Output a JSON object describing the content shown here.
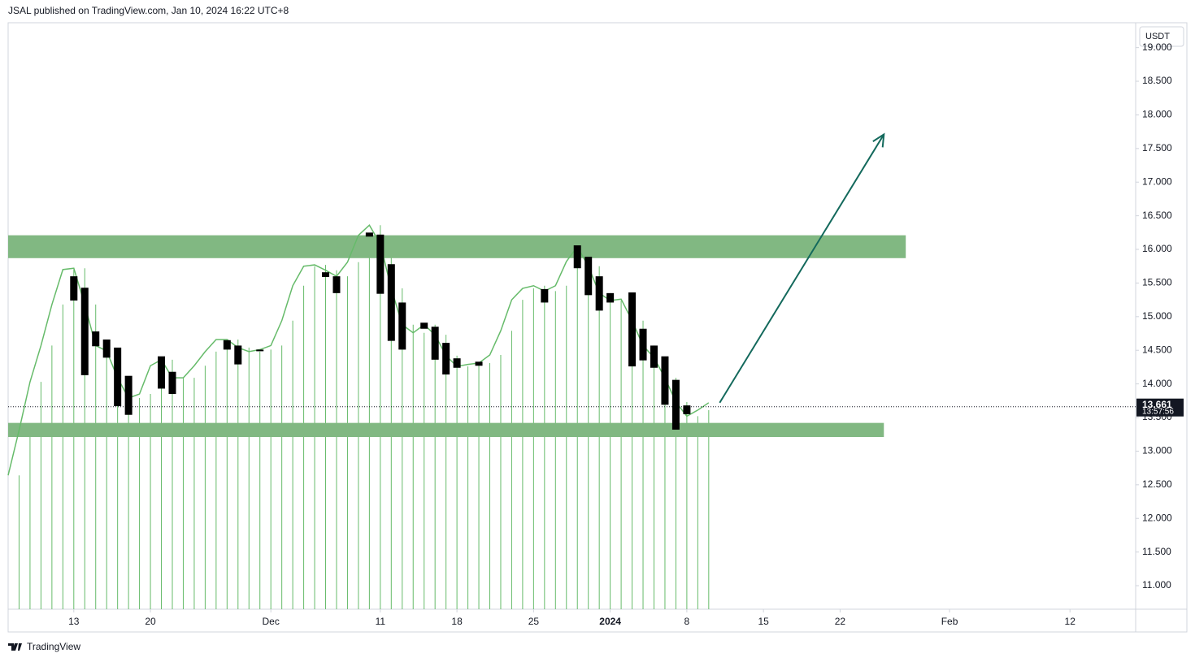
{
  "chart_data": {
    "type": "candlestick",
    "header": "JSAL published on TradingView.com, Jan 10, 2024 16:22 UTC+8",
    "brand": "TradingView",
    "currency": "USDT",
    "x": [
      "2023-11-13",
      "2023-11-14",
      "2023-11-15",
      "2023-11-16",
      "2023-11-17",
      "2023-11-18",
      "2023-11-21",
      "2023-11-22",
      "2023-11-27",
      "2023-11-28",
      "2023-11-30",
      "2023-12-06",
      "2023-12-07",
      "2023-12-10",
      "2023-12-11",
      "2023-12-12",
      "2023-12-13",
      "2023-12-15",
      "2023-12-16",
      "2023-12-17",
      "2023-12-18",
      "2023-12-20",
      "2023-12-26",
      "2023-12-29",
      "2023-12-30",
      "2023-12-31",
      "2024-01-01",
      "2024-01-03",
      "2024-01-04",
      "2024-01-05",
      "2024-01-06",
      "2024-01-07",
      "2024-01-08"
    ],
    "open": [
      15.6,
      15.43,
      14.78,
      14.66,
      14.54,
      14.12,
      14.41,
      14.18,
      14.65,
      14.57,
      14.51,
      15.66,
      15.6,
      16.25,
      16.22,
      15.78,
      15.21,
      14.91,
      14.85,
      14.61,
      14.38,
      14.33,
      15.41,
      16.06,
      15.89,
      15.6,
      15.35,
      15.36,
      14.82,
      14.57,
      14.41,
      14.06,
      13.68
    ],
    "close": [
      15.24,
      14.13,
      14.56,
      14.39,
      13.67,
      13.54,
      13.93,
      13.85,
      14.51,
      14.29,
      14.49,
      15.59,
      15.35,
      16.19,
      15.34,
      14.64,
      14.51,
      14.82,
      14.36,
      14.14,
      14.24,
      14.27,
      15.21,
      15.72,
      15.32,
      15.09,
      15.21,
      14.26,
      14.35,
      14.24,
      13.69,
      13.32,
      13.55
    ],
    "color": "#000000",
    "indicator": {
      "color": "#66bb6a",
      "x": [
        "2023-11-07",
        "2023-11-08",
        "2023-11-09",
        "2023-11-10",
        "2023-11-11",
        "2023-11-12",
        "2023-11-13",
        "2023-11-14",
        "2023-11-15",
        "2023-11-16",
        "2023-11-17",
        "2023-11-18",
        "2023-11-19",
        "2023-11-20",
        "2023-11-21",
        "2023-11-22",
        "2023-11-23",
        "2023-11-24",
        "2023-11-25",
        "2023-11-26",
        "2023-11-27",
        "2023-11-28",
        "2023-11-29",
        "2023-11-30",
        "2023-12-01",
        "2023-12-02",
        "2023-12-03",
        "2023-12-04",
        "2023-12-05",
        "2023-12-06",
        "2023-12-07",
        "2023-12-08",
        "2023-12-09",
        "2023-12-10",
        "2023-12-11",
        "2023-12-12",
        "2023-12-13",
        "2023-12-14",
        "2023-12-15",
        "2023-12-16",
        "2023-12-17",
        "2023-12-18",
        "2023-12-19",
        "2023-12-20",
        "2023-12-21",
        "2023-12-22",
        "2023-12-23",
        "2023-12-24",
        "2023-12-25",
        "2023-12-26",
        "2023-12-27",
        "2023-12-28",
        "2023-12-29",
        "2023-12-30",
        "2023-12-31",
        "2024-01-01",
        "2024-01-02",
        "2024-01-03",
        "2024-01-04",
        "2024-01-05",
        "2024-01-06",
        "2024-01-07",
        "2024-01-08",
        "2024-01-09",
        "2024-01-10"
      ],
      "line": [
        12.64,
        13.31,
        14.03,
        14.57,
        15.18,
        15.7,
        15.72,
        15.18,
        14.57,
        14.49,
        14.09,
        13.79,
        13.85,
        14.27,
        14.36,
        14.09,
        14.09,
        14.27,
        14.48,
        14.66,
        14.66,
        14.54,
        14.48,
        14.51,
        14.57,
        14.94,
        15.46,
        15.75,
        15.77,
        15.69,
        15.6,
        15.81,
        16.21,
        16.36,
        16.08,
        15.42,
        14.88,
        14.76,
        14.88,
        14.73,
        14.42,
        14.26,
        14.29,
        14.31,
        14.43,
        14.79,
        15.25,
        15.42,
        15.46,
        15.38,
        15.46,
        15.82,
        16.04,
        15.75,
        15.35,
        15.24,
        15.26,
        14.94,
        14.57,
        14.39,
        14.09,
        13.73,
        13.52,
        13.61,
        13.72
      ],
      "histogram": [
        null,
        12.64,
        13.31,
        14.03,
        14.57,
        15.18,
        15.7,
        15.72,
        15.18,
        14.57,
        14.49,
        14.09,
        13.79,
        13.85,
        14.27,
        14.36,
        14.09,
        14.09,
        14.27,
        14.48,
        14.66,
        14.66,
        14.54,
        14.48,
        14.51,
        14.57,
        14.94,
        15.46,
        15.75,
        15.77,
        15.69,
        15.6,
        15.81,
        16.21,
        16.36,
        16.08,
        15.42,
        14.88,
        14.76,
        14.88,
        14.73,
        14.42,
        14.26,
        14.29,
        14.31,
        14.43,
        14.79,
        15.25,
        15.42,
        15.46,
        15.38,
        15.46,
        15.82,
        16.04,
        15.75,
        15.35,
        15.24,
        15.26,
        14.94,
        14.57,
        14.39,
        14.09,
        13.73,
        13.52,
        13.61
      ]
    },
    "zones": [
      {
        "from": "2023-11-07",
        "to": "2024-01-28",
        "low": 15.87,
        "high": 16.21,
        "color": "#81b882"
      },
      {
        "from": "2023-11-07",
        "to": "2024-01-26",
        "low": 13.21,
        "high": 13.42,
        "color": "#81b882"
      }
    ],
    "arrow": {
      "x": [
        "2024-01-11",
        "2024-01-26"
      ],
      "y": [
        13.72,
        17.71
      ],
      "color": "#13695c"
    },
    "last_price": 13.661,
    "countdown": "13:57:56",
    "xlim": [
      "2023-11-07",
      "2024-02-18"
    ],
    "xticks": [
      {
        "value": "2023-11-13",
        "label": "13"
      },
      {
        "value": "2023-11-20",
        "label": "20"
      },
      {
        "value": "2023-12-01",
        "label": "Dec"
      },
      {
        "value": "2023-12-11",
        "label": "11"
      },
      {
        "value": "2023-12-18",
        "label": "18"
      },
      {
        "value": "2023-12-25",
        "label": "25"
      },
      {
        "value": "2024-01-01",
        "label": "2024"
      },
      {
        "value": "2024-01-08",
        "label": "8"
      },
      {
        "value": "2024-01-15",
        "label": "15"
      },
      {
        "value": "2024-01-22",
        "label": "22"
      },
      {
        "value": "2024-02-01",
        "label": "Feb"
      },
      {
        "value": "2024-02-12",
        "label": "12"
      }
    ],
    "ylim": [
      10.65,
      19.37
    ],
    "yticks": [
      {
        "value": 11,
        "label": "11.000"
      },
      {
        "value": 11.5,
        "label": "11.500"
      },
      {
        "value": 12,
        "label": "12.000"
      },
      {
        "value": 12.5,
        "label": "12.500"
      },
      {
        "value": 13,
        "label": "13.000"
      },
      {
        "value": 13.5,
        "label": "13.500"
      },
      {
        "value": 14,
        "label": "14.000"
      },
      {
        "value": 14.5,
        "label": "14.500"
      },
      {
        "value": 15,
        "label": "15.000"
      },
      {
        "value": 15.5,
        "label": "15.500"
      },
      {
        "value": 16,
        "label": "16.000"
      },
      {
        "value": 16.5,
        "label": "16.500"
      },
      {
        "value": 17,
        "label": "17.000"
      },
      {
        "value": 17.5,
        "label": "17.500"
      },
      {
        "value": 18,
        "label": "18.000"
      },
      {
        "value": 18.5,
        "label": "18.500"
      },
      {
        "value": 19,
        "label": "19.000"
      }
    ]
  }
}
